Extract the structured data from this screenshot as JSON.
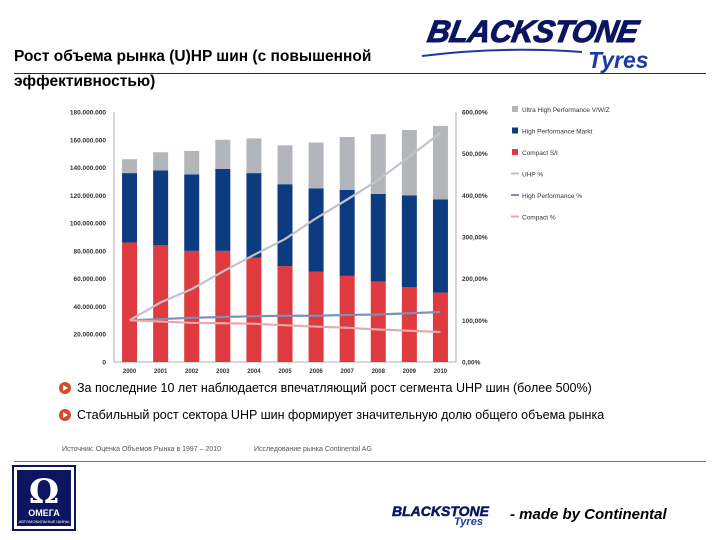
{
  "slide": {
    "title": "Рост объема рынка (U)HP шин (с повышенной эффективностью)",
    "logo_top_main": "BLACKSTONE",
    "logo_top_sub": "Tyres",
    "bullets": [
      "За последние 10 лет наблюдается впечатляющий рост сегмента UHP шин (более 500%)",
      "Стабильный рост сектора UHP шин формирует значительную долю общего объема рынка"
    ],
    "source_left": "Источник: Оценка Объемов Рынка в 1997 – 2010",
    "source_right": "Исследование рынка Continental AG",
    "omega_symbol": "Ω",
    "omega_name": "ОМЕГА",
    "omega_sub": "АВТОМОБИЛЬНЫЕ ШИНЫ",
    "logo_bottom_main": "BLACKSTONE",
    "logo_bottom_sub": "Tyres",
    "made_by": "- made by Continental",
    "colors": {
      "uhp": "#b2b6ba",
      "hp": "#0d3b80",
      "compact": "#de3a3f",
      "uhp_line": "#c0c4c8",
      "hp_line": "#7f8fb5",
      "compact_line": "#eba8ab",
      "bullet": "#d34b2a",
      "brand": "#0b1560"
    }
  },
  "chart_data": {
    "type": "bar",
    "stacked": true,
    "categories": [
      "2000",
      "2001",
      "2002",
      "2003",
      "2004",
      "2005",
      "2006",
      "2007",
      "2008",
      "2009",
      "2010"
    ],
    "series": [
      {
        "name": "Compact S/I",
        "values": [
          86000000,
          84000000,
          80000000,
          80000000,
          75000000,
          69000000,
          65000000,
          62000000,
          58000000,
          54000000,
          50000000
        ]
      },
      {
        "name": "High Performance Markt",
        "values": [
          50000000,
          54000000,
          55000000,
          59000000,
          61000000,
          59000000,
          60000000,
          62000000,
          63000000,
          66000000,
          67000000
        ]
      },
      {
        "name": "Ultra High Performance V/W/Z",
        "values": [
          10000000,
          13000000,
          17000000,
          21000000,
          25000000,
          28000000,
          33000000,
          38000000,
          43000000,
          47000000,
          53000000
        ]
      }
    ],
    "line_series": [
      {
        "name": "UHP %",
        "values": [
          100,
          143,
          175,
          217,
          257,
          295,
          345,
          390,
          437,
          493,
          550
        ]
      },
      {
        "name": "High Performance %",
        "values": [
          100,
          103,
          106,
          108,
          110,
          111,
          111,
          113,
          114,
          117,
          120
        ]
      },
      {
        "name": "Compact %",
        "values": [
          100,
          97,
          94,
          93,
          92,
          88,
          85,
          82,
          78,
          75,
          72
        ]
      }
    ],
    "y_left": {
      "min": 0,
      "max": 180000000,
      "ticks": [
        "0",
        "20.000.000",
        "40.000.000",
        "60.000.000",
        "80.000.000",
        "100.000.000",
        "120.000.000",
        "140.000.000",
        "160.000.000",
        "180.000.000"
      ]
    },
    "y_right": {
      "min": 0,
      "max": 600,
      "ticks": [
        "0,00%",
        "100,00%",
        "200,00%",
        "300,00%",
        "400,00%",
        "500,00%",
        "600,00%"
      ]
    },
    "legend": [
      {
        "name": "Ultra High Performance V/W/Z",
        "kind": "box",
        "color": "#b2b6ba"
      },
      {
        "name": "High Performance Markt",
        "kind": "box",
        "color": "#0d3b80"
      },
      {
        "name": "Compact S/I",
        "kind": "box",
        "color": "#de3a3f"
      },
      {
        "name": "UHP %",
        "kind": "line",
        "color": "#c0c4c8"
      },
      {
        "name": "High Performance %",
        "kind": "line",
        "color": "#7f8fb5"
      },
      {
        "name": "Compact %",
        "kind": "line",
        "color": "#eba8ab"
      }
    ],
    "legend_position": "right",
    "grid": false
  }
}
